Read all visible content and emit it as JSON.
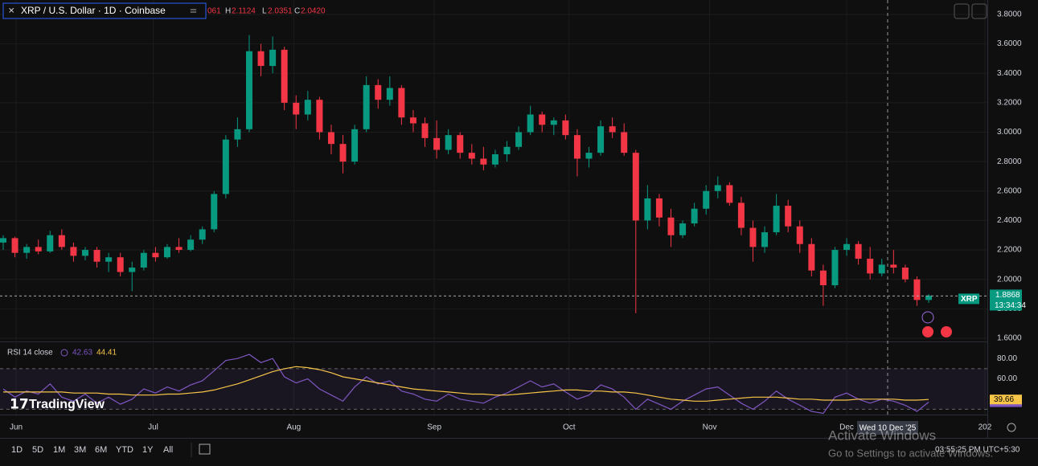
{
  "header": {
    "symbol_title": "XRP / U.S. Dollar · 1D · Coinbase",
    "open_fragment": "061",
    "high_letter": "H",
    "high": 2.1124,
    "low_letter": "L",
    "low": 2.0351,
    "close_letter": "C",
    "close": {
      "value": 2.042,
      "label": "2.0420"
    }
  },
  "chart_data": [
    {
      "type": "candlestick",
      "up_color": "#089981",
      "down_color": "#f23645",
      "ylim": [
        1.578,
        3.898
      ],
      "yticks": [
        {
          "value": 1.6,
          "label": "1.6000"
        },
        {
          "value": 1.8,
          "label": "1.8000"
        },
        {
          "value": 2.0,
          "label": "2.0000"
        },
        {
          "value": 2.2,
          "label": "2.2000"
        },
        {
          "value": 2.4,
          "label": "2.4000"
        },
        {
          "value": 2.6,
          "label": "2.6000"
        },
        {
          "value": 2.8,
          "label": "2.8000"
        },
        {
          "value": 3.0,
          "label": "3.0000"
        },
        {
          "value": 3.2,
          "label": "3.2000"
        },
        {
          "value": 3.4,
          "label": "3.4000"
        },
        {
          "value": 3.6,
          "label": "3.6000"
        },
        {
          "value": 3.8,
          "label": "3.8000"
        }
      ],
      "xticks": [
        {
          "value": 1.1,
          "label": "Jun"
        },
        {
          "value": 12.8,
          "label": "Jul"
        },
        {
          "value": 24.8,
          "label": "Aug"
        },
        {
          "value": 36.8,
          "label": "Sep"
        },
        {
          "value": 48.3,
          "label": "Oct"
        },
        {
          "value": 60.3,
          "label": "Nov"
        },
        {
          "value": 72,
          "label": "Dec"
        },
        {
          "value": 83.8,
          "label": "202"
        }
      ],
      "symbol_tag": "XRP",
      "last_price": 1.8868,
      "countdown": "13:34:34",
      "crosshair_date": "Wed 10 Dec '25",
      "ohlc": [
        [
          2.25,
          2.3,
          2.2,
          2.28
        ],
        [
          2.28,
          2.29,
          2.15,
          2.18
        ],
        [
          2.18,
          2.24,
          2.14,
          2.22
        ],
        [
          2.22,
          2.27,
          2.17,
          2.19
        ],
        [
          2.19,
          2.33,
          2.18,
          2.3
        ],
        [
          2.3,
          2.34,
          2.2,
          2.22
        ],
        [
          2.22,
          2.25,
          2.12,
          2.16
        ],
        [
          2.16,
          2.22,
          2.13,
          2.2
        ],
        [
          2.2,
          2.22,
          2.08,
          2.12
        ],
        [
          2.12,
          2.18,
          2.05,
          2.15
        ],
        [
          2.15,
          2.18,
          2.02,
          2.05
        ],
        [
          2.05,
          2.12,
          1.92,
          2.08
        ],
        [
          2.08,
          2.2,
          2.06,
          2.18
        ],
        [
          2.18,
          2.22,
          2.12,
          2.15
        ],
        [
          2.15,
          2.24,
          2.14,
          2.22
        ],
        [
          2.22,
          2.28,
          2.18,
          2.2
        ],
        [
          2.2,
          2.3,
          2.19,
          2.27
        ],
        [
          2.27,
          2.36,
          2.24,
          2.34
        ],
        [
          2.34,
          2.6,
          2.32,
          2.58
        ],
        [
          2.58,
          2.98,
          2.55,
          2.95
        ],
        [
          2.95,
          3.1,
          2.9,
          3.02
        ],
        [
          3.02,
          3.66,
          3.0,
          3.55
        ],
        [
          3.55,
          3.6,
          3.38,
          3.45
        ],
        [
          3.45,
          3.65,
          3.4,
          3.56
        ],
        [
          3.56,
          3.58,
          3.15,
          3.2
        ],
        [
          3.2,
          3.25,
          3.02,
          3.12
        ],
        [
          3.12,
          3.28,
          3.08,
          3.22
        ],
        [
          3.22,
          3.24,
          2.95,
          3.0
        ],
        [
          3.0,
          3.05,
          2.85,
          2.92
        ],
        [
          2.92,
          2.98,
          2.72,
          2.8
        ],
        [
          2.8,
          3.05,
          2.78,
          3.02
        ],
        [
          3.02,
          3.38,
          3.0,
          3.32
        ],
        [
          3.32,
          3.36,
          3.16,
          3.22
        ],
        [
          3.22,
          3.38,
          3.18,
          3.3
        ],
        [
          3.3,
          3.32,
          3.05,
          3.1
        ],
        [
          3.1,
          3.15,
          3.0,
          3.06
        ],
        [
          3.06,
          3.1,
          2.9,
          2.96
        ],
        [
          2.96,
          3.08,
          2.82,
          2.88
        ],
        [
          2.88,
          3.02,
          2.85,
          2.98
        ],
        [
          2.98,
          3.0,
          2.82,
          2.86
        ],
        [
          2.86,
          2.92,
          2.78,
          2.82
        ],
        [
          2.82,
          2.9,
          2.74,
          2.78
        ],
        [
          2.78,
          2.88,
          2.76,
          2.85
        ],
        [
          2.85,
          2.94,
          2.8,
          2.9
        ],
        [
          2.9,
          3.04,
          2.88,
          3.0
        ],
        [
          3.0,
          3.18,
          2.98,
          3.12
        ],
        [
          3.12,
          3.14,
          3.0,
          3.05
        ],
        [
          3.05,
          3.1,
          2.98,
          3.08
        ],
        [
          3.08,
          3.12,
          2.95,
          2.98
        ],
        [
          2.98,
          3.02,
          2.7,
          2.82
        ],
        [
          2.82,
          2.9,
          2.76,
          2.86
        ],
        [
          2.86,
          3.08,
          2.84,
          3.04
        ],
        [
          3.04,
          3.1,
          2.96,
          3.0
        ],
        [
          3.0,
          3.06,
          2.84,
          2.86
        ],
        [
          2.86,
          2.88,
          1.77,
          2.4
        ],
        [
          2.4,
          2.64,
          2.34,
          2.55
        ],
        [
          2.55,
          2.58,
          2.36,
          2.42
        ],
        [
          2.42,
          2.48,
          2.22,
          2.3
        ],
        [
          2.3,
          2.4,
          2.28,
          2.38
        ],
        [
          2.38,
          2.52,
          2.36,
          2.48
        ],
        [
          2.48,
          2.64,
          2.44,
          2.6
        ],
        [
          2.6,
          2.7,
          2.55,
          2.64
        ],
        [
          2.64,
          2.66,
          2.5,
          2.52
        ],
        [
          2.52,
          2.56,
          2.3,
          2.35
        ],
        [
          2.35,
          2.4,
          2.12,
          2.22
        ],
        [
          2.22,
          2.36,
          2.18,
          2.32
        ],
        [
          2.32,
          2.58,
          2.3,
          2.5
        ],
        [
          2.5,
          2.54,
          2.32,
          2.36
        ],
        [
          2.36,
          2.4,
          2.18,
          2.24
        ],
        [
          2.24,
          2.28,
          2.02,
          2.06
        ],
        [
          2.06,
          2.1,
          1.82,
          1.96
        ],
        [
          1.96,
          2.22,
          1.94,
          2.2
        ],
        [
          2.2,
          2.28,
          2.16,
          2.24
        ],
        [
          2.24,
          2.26,
          2.1,
          2.14
        ],
        [
          2.14,
          2.22,
          2.0,
          2.04
        ],
        [
          2.04,
          2.14,
          2.02,
          2.1
        ],
        [
          2.1,
          2.2,
          2.04,
          2.08
        ],
        [
          2.08,
          2.1,
          1.98,
          2.0
        ],
        [
          2.0,
          2.02,
          1.82,
          1.86
        ],
        [
          1.86,
          1.9,
          1.84,
          1.89
        ]
      ]
    },
    {
      "type": "line",
      "title": "RSI 14 close",
      "legend_values": [
        42.63,
        44.41
      ],
      "ylim": [
        24.8,
        94.4
      ],
      "yticks": [
        {
          "value": 60,
          "label": "60.00"
        },
        {
          "value": 80,
          "label": "80.00"
        }
      ],
      "bands": [
        30,
        70
      ],
      "series": [
        {
          "color": "#7e57c2",
          "values": [
            50,
            42,
            48,
            45,
            55,
            42,
            38,
            45,
            36,
            42,
            35,
            40,
            50,
            46,
            52,
            48,
            54,
            58,
            68,
            78,
            80,
            84,
            76,
            80,
            62,
            56,
            60,
            50,
            44,
            38,
            52,
            62,
            55,
            58,
            48,
            45,
            40,
            38,
            45,
            40,
            38,
            36,
            42,
            46,
            52,
            58,
            52,
            55,
            47,
            40,
            44,
            54,
            50,
            42,
            30,
            40,
            35,
            30,
            38,
            44,
            50,
            52,
            44,
            36,
            30,
            38,
            48,
            40,
            34,
            28,
            26,
            42,
            46,
            40,
            36,
            40,
            38,
            34,
            28,
            37.03
          ]
        },
        {
          "color": "#f7c548",
          "values": [
            47,
            47,
            47,
            47,
            47,
            47,
            46,
            46,
            46,
            45,
            45,
            44,
            44,
            44,
            45,
            45,
            46,
            47,
            49,
            52,
            55,
            59,
            63,
            67,
            70,
            72,
            71,
            69,
            66,
            62,
            60,
            58,
            56,
            54,
            52,
            50,
            49,
            48,
            47,
            46,
            45,
            45,
            44,
            44,
            45,
            46,
            47,
            48,
            49,
            49,
            48,
            48,
            47,
            47,
            46,
            44,
            42,
            40,
            39,
            38,
            38,
            39,
            40,
            41,
            42,
            42,
            42,
            41,
            40,
            40,
            39,
            39,
            39,
            40,
            40,
            40,
            40,
            39,
            39,
            39.66
          ]
        }
      ]
    }
  ],
  "toolbar": {
    "ranges": [
      "1D",
      "5D",
      "1M",
      "3M",
      "6M",
      "YTD",
      "1Y",
      "All"
    ],
    "clock": "03:55:25 PM UTC+5:30"
  },
  "brand": "TradingView",
  "watermark": {
    "title": "Activate Windows",
    "subtitle": "Go to Settings to activate Windows."
  }
}
